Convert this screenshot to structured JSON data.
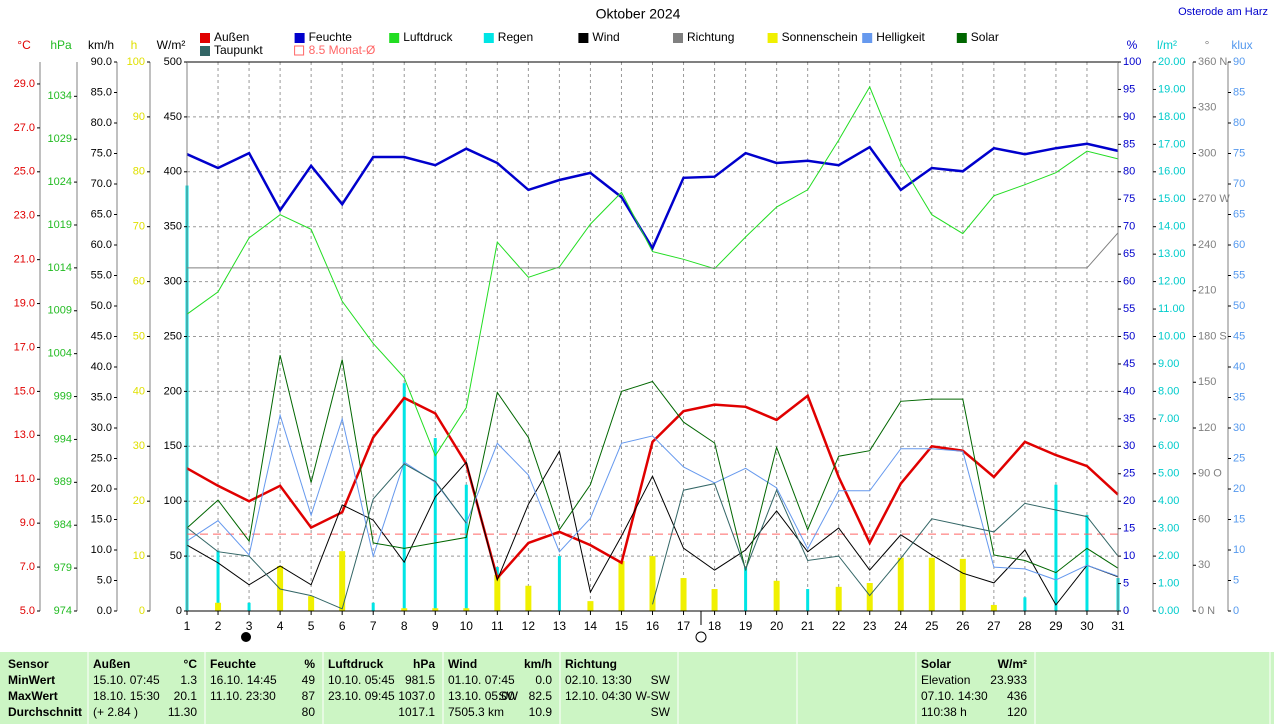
{
  "header": {
    "location": "Osterode am Harz"
  },
  "chart_data": {
    "type": "line",
    "title": "Oktober 2024",
    "x": [
      1,
      2,
      3,
      4,
      5,
      6,
      7,
      8,
      9,
      10,
      11,
      12,
      13,
      14,
      15,
      16,
      17,
      18,
      19,
      20,
      21,
      22,
      23,
      24,
      25,
      26,
      27,
      28,
      29,
      30,
      31
    ],
    "xlim": [
      1,
      31
    ],
    "xticks": [
      1,
      2,
      3,
      4,
      5,
      6,
      7,
      8,
      9,
      10,
      11,
      12,
      13,
      14,
      15,
      16,
      17,
      18,
      19,
      20,
      21,
      22,
      23,
      24,
      25,
      26,
      27,
      28,
      29,
      30,
      31
    ],
    "axes": [
      {
        "unit": "°C",
        "side": "left",
        "color": "#e00000",
        "lim": [
          5,
          30
        ],
        "ticks": [
          {
            "value": 5,
            "label": "5.0"
          },
          {
            "value": 7,
            "label": "7.0"
          },
          {
            "value": 9,
            "label": "9.0"
          },
          {
            "value": 11,
            "label": "11.0"
          },
          {
            "value": 13,
            "label": "13.0"
          },
          {
            "value": 15,
            "label": "15.0"
          },
          {
            "value": 17,
            "label": "17.0"
          },
          {
            "value": 19,
            "label": "19.0"
          },
          {
            "value": 21,
            "label": "21.0"
          },
          {
            "value": 23,
            "label": "23.0"
          },
          {
            "value": 25,
            "label": "25.0"
          },
          {
            "value": 27,
            "label": "27.0"
          },
          {
            "value": 29,
            "label": "29.0"
          }
        ]
      },
      {
        "unit": "hPa",
        "side": "left",
        "color": "#22bb22",
        "lim": [
          974,
          1038
        ],
        "ticks": [
          974,
          979,
          984,
          989,
          994,
          999,
          1004,
          1009,
          1014,
          1019,
          1024,
          1029,
          1034
        ]
      },
      {
        "unit": "km/h",
        "side": "left",
        "color": "#000000",
        "lim": [
          0,
          90
        ],
        "ticks": [
          {
            "value": 0,
            "label": "0.0"
          },
          {
            "value": 5,
            "label": "5.0"
          },
          {
            "value": 10,
            "label": "10.0"
          },
          {
            "value": 15,
            "label": "15.0"
          },
          {
            "value": 20,
            "label": "20.0"
          },
          {
            "value": 25,
            "label": "25.0"
          },
          {
            "value": 30,
            "label": "30.0"
          },
          {
            "value": 35,
            "label": "35.0"
          },
          {
            "value": 40,
            "label": "40.0"
          },
          {
            "value": 45,
            "label": "45.0"
          },
          {
            "value": 50,
            "label": "50.0"
          },
          {
            "value": 55,
            "label": "55.0"
          },
          {
            "value": 60,
            "label": "60.0"
          },
          {
            "value": 65,
            "label": "65.0"
          },
          {
            "value": 70,
            "label": "70.0"
          },
          {
            "value": 75,
            "label": "75.0"
          },
          {
            "value": 80,
            "label": "80.0"
          },
          {
            "value": 85,
            "label": "85.0"
          },
          {
            "value": 90,
            "label": "90.0"
          }
        ]
      },
      {
        "unit": "h",
        "side": "left",
        "color": "#e0e000",
        "lim": [
          0,
          100
        ],
        "ticks": [
          0,
          10,
          20,
          30,
          40,
          50,
          60,
          70,
          80,
          90,
          100
        ]
      },
      {
        "unit": "W/m²",
        "side": "left",
        "color": "#000000",
        "lim": [
          0,
          500
        ],
        "ticks": [
          0,
          50,
          100,
          150,
          200,
          250,
          300,
          350,
          400,
          450,
          500
        ],
        "grid": true
      },
      {
        "unit": "%",
        "side": "right",
        "color": "#0000cc",
        "lim": [
          0,
          100
        ],
        "ticks": [
          0,
          5,
          10,
          15,
          20,
          25,
          30,
          35,
          40,
          45,
          50,
          55,
          60,
          65,
          70,
          75,
          80,
          85,
          90,
          95,
          100
        ]
      },
      {
        "unit": "l/m²",
        "side": "right",
        "color": "#00cccc",
        "lim": [
          0,
          20
        ],
        "ticks": [
          {
            "value": 0,
            "label": "0.00"
          },
          {
            "value": 1,
            "label": "1.00"
          },
          {
            "value": 2,
            "label": "2.00"
          },
          {
            "value": 3,
            "label": "3.00"
          },
          {
            "value": 4,
            "label": "4.00"
          },
          {
            "value": 5,
            "label": "5.00"
          },
          {
            "value": 6,
            "label": "6.00"
          },
          {
            "value": 7,
            "label": "7.00"
          },
          {
            "value": 8,
            "label": "8.00"
          },
          {
            "value": 9,
            "label": "9.00"
          },
          {
            "value": 10,
            "label": "10.00"
          },
          {
            "value": 11,
            "label": "11.00"
          },
          {
            "value": 12,
            "label": "12.00"
          },
          {
            "value": 13,
            "label": "13.00"
          },
          {
            "value": 14,
            "label": "14.00"
          },
          {
            "value": 15,
            "label": "15.00"
          },
          {
            "value": 16,
            "label": "16.00"
          },
          {
            "value": 17,
            "label": "17.00"
          },
          {
            "value": 18,
            "label": "18.00"
          },
          {
            "value": 19,
            "label": "19.00"
          },
          {
            "value": 20,
            "label": "20.00"
          }
        ]
      },
      {
        "unit": "°",
        "side": "right",
        "color": "#808080",
        "lim": [
          0,
          360
        ],
        "ticks": [
          {
            "value": 0,
            "label": "0 N"
          },
          30,
          60,
          {
            "value": 90,
            "label": "90 O"
          },
          120,
          150,
          {
            "value": 180,
            "label": "180 S"
          },
          210,
          240,
          {
            "value": 270,
            "label": "270 W"
          },
          300,
          330,
          {
            "value": 360,
            "label": "360 N"
          }
        ]
      },
      {
        "unit": "klux",
        "side": "right",
        "color": "#5599ee",
        "lim": [
          0,
          90
        ],
        "ticks": [
          0,
          5,
          10,
          15,
          20,
          25,
          30,
          35,
          40,
          45,
          50,
          55,
          60,
          65,
          70,
          75,
          80,
          85,
          90
        ]
      }
    ],
    "series": [
      {
        "name": "Außen",
        "color": "#e00000",
        "kind": "line",
        "axis": 0,
        "values": [
          11.5,
          10.7,
          10.0,
          10.7,
          8.8,
          9.5,
          12.9,
          14.7,
          14.0,
          11.7,
          6.5,
          8.1,
          8.6,
          8.0,
          7.2,
          12.7,
          14.1,
          14.4,
          14.3,
          13.7,
          14.8,
          11.1,
          8.1,
          10.8,
          12.5,
          12.3,
          11.1,
          12.7,
          12.1,
          11.6,
          10.3
        ]
      },
      {
        "name": "Feuchte",
        "color": "#0000cc",
        "kind": "line",
        "axis": 5,
        "values": [
          83.2,
          80.7,
          83.4,
          73.0,
          81.1,
          74.1,
          82.7,
          82.7,
          81.2,
          84.2,
          81.6,
          76.7,
          78.5,
          79.8,
          75.4,
          66.1,
          78.9,
          79.1,
          83.4,
          81.6,
          82.0,
          81.2,
          84.5,
          76.7,
          80.7,
          80.1,
          84.3,
          83.2,
          84.3,
          85.1,
          83.8
        ]
      },
      {
        "name": "Luftdruck",
        "color": "#22dd22",
        "kind": "line",
        "axis": 1,
        "values": [
          1008.6,
          1011.2,
          1017.5,
          1020.2,
          1018.5,
          1010.1,
          1005.2,
          1001.2,
          992.1,
          997.7,
          1017.0,
          1012.9,
          1014.1,
          1019.1,
          1022.8,
          1015.9,
          1015.0,
          1013.9,
          1017.6,
          1021.1,
          1023.1,
          1028.9,
          1035.1,
          1026.2,
          1020.2,
          1018.0,
          1022.4,
          1023.7,
          1025.1,
          1027.6,
          1026.7
        ]
      },
      {
        "name": "Regen",
        "color": "#00e5e5",
        "kind": "bar",
        "axis": 6,
        "values": [
          15.5,
          2.2,
          0.3,
          0,
          0,
          0,
          0.3,
          8.3,
          6.3,
          4.6,
          1.6,
          0.4,
          2.0,
          0,
          0.3,
          0,
          0,
          0,
          1.6,
          0,
          0.8,
          0.5,
          0,
          0,
          0.1,
          0,
          0,
          0.5,
          4.6,
          3.5,
          1.2
        ]
      },
      {
        "name": "Wind",
        "color": "#000000",
        "kind": "line",
        "axis": 2,
        "values": [
          10.8,
          7.9,
          4.3,
          7.4,
          4.3,
          17.4,
          14.9,
          8.0,
          18.7,
          24.4,
          5.1,
          17.5,
          26.2,
          3.1,
          12.3,
          22.1,
          10.3,
          6.7,
          10.0,
          16.4,
          9.7,
          13.6,
          6.7,
          12.5,
          9.2,
          6.2,
          4.6,
          10.0,
          1.0,
          7.5,
          5.6
        ]
      },
      {
        "name": "Richtung",
        "color": "#808080",
        "kind": "line",
        "axis": 7,
        "values": [
          225,
          225,
          225,
          225,
          225,
          225,
          225,
          225,
          225,
          225,
          225,
          225,
          225,
          225,
          225,
          225,
          225,
          225,
          225,
          225,
          225,
          225,
          225,
          225,
          225,
          225,
          225,
          225,
          225,
          225,
          248
        ]
      },
      {
        "name": "Sonnenschein",
        "color": "#f0f000",
        "kind": "bar",
        "axis": 3,
        "values": [
          0,
          1.5,
          0,
          8.2,
          2.7,
          10.9,
          0,
          0.5,
          0.5,
          0.5,
          6.6,
          4.6,
          0,
          1.8,
          9.1,
          10.0,
          6.0,
          4.0,
          0,
          5.5,
          0,
          4.4,
          5.1,
          9.7,
          9.7,
          9.5,
          1.1,
          0,
          0,
          0,
          0
        ]
      },
      {
        "name": "Helligkeit",
        "color": "#6699ee",
        "kind": "line",
        "axis": 8,
        "values": [
          11.5,
          14.8,
          9.2,
          32.1,
          15.7,
          31.5,
          9.0,
          24.4,
          21.1,
          14.4,
          27.5,
          22.3,
          9.7,
          15.2,
          27.5,
          28.7,
          23.6,
          21.0,
          23.4,
          20.2,
          10.2,
          19.7,
          19.7,
          26.6,
          26.6,
          26.2,
          7.2,
          6.9,
          5.1,
          7.5,
          5.7
        ]
      },
      {
        "name": "Solar",
        "color": "#006600",
        "kind": "line",
        "axis": 4,
        "values": [
          75.6,
          101,
          63.7,
          233,
          117,
          229,
          62,
          57,
          62,
          67,
          199,
          158,
          74,
          115,
          200,
          209,
          172,
          153,
          37,
          149,
          74,
          141,
          146,
          191,
          193,
          193,
          51,
          46,
          35,
          57,
          39
        ]
      },
      {
        "name": "Taupunkt",
        "color": "#336666",
        "kind": "line",
        "axis": 0,
        "values": [
          8.8,
          7.7,
          7.5,
          6.0,
          5.7,
          5.1,
          10.1,
          11.7,
          10.9,
          9.0,
          null,
          null,
          null,
          null,
          null,
          5.3,
          10.5,
          10.8,
          6.9,
          10.5,
          7.3,
          7.5,
          5.7,
          7.4,
          9.2,
          8.9,
          8.6,
          9.9,
          9.6,
          9.3,
          7.5
        ]
      }
    ],
    "monthly_mean": {
      "label": "8.5 Monat-Ø",
      "value": 8.5,
      "axis": 0,
      "color": "#ff6666"
    },
    "grid": true
  },
  "table": {
    "row_heads": [
      "Sensor",
      "MinWert",
      "MaxWert",
      "Durchschnitt"
    ],
    "groups": [
      {
        "title": "Außen",
        "unit": "°C",
        "rows": [
          [
            "15.10. 07:45",
            "1.3"
          ],
          [
            "18.10. 15:30",
            "20.1"
          ],
          [
            "(+ 2.84 )",
            "11.30"
          ]
        ]
      },
      {
        "title": "Feuchte",
        "unit": "%",
        "rows": [
          [
            "16.10. 14:45",
            "49"
          ],
          [
            "11.10. 23:30",
            "87"
          ],
          [
            "80"
          ]
        ]
      },
      {
        "title": "Luftdruck",
        "unit": "hPa",
        "rows": [
          [
            "10.10. 05:45",
            "981.5"
          ],
          [
            "23.10. 09:45",
            "1037.0"
          ],
          [
            "1017.1"
          ]
        ]
      },
      {
        "title": "Wind",
        "unit": "km/h",
        "rows": [
          [
            "01.10. 07:45",
            "0.0"
          ],
          [
            "13.10. 05:00",
            "SW",
            "82.5"
          ],
          [
            "7505.3 km",
            "10.9"
          ]
        ]
      },
      {
        "title": "Richtung",
        "rows": [
          [
            "02.10. 13:30",
            "SW"
          ],
          [
            "12.10. 04:30",
            "W-SW"
          ],
          [
            "SW"
          ]
        ]
      },
      {
        "title": "Solar",
        "unit": "W/m²",
        "rows": [
          [
            "Elevation",
            "23.933"
          ],
          [
            "07.10. 14:30",
            "436"
          ],
          [
            "110:38 h",
            "120"
          ]
        ]
      }
    ]
  }
}
